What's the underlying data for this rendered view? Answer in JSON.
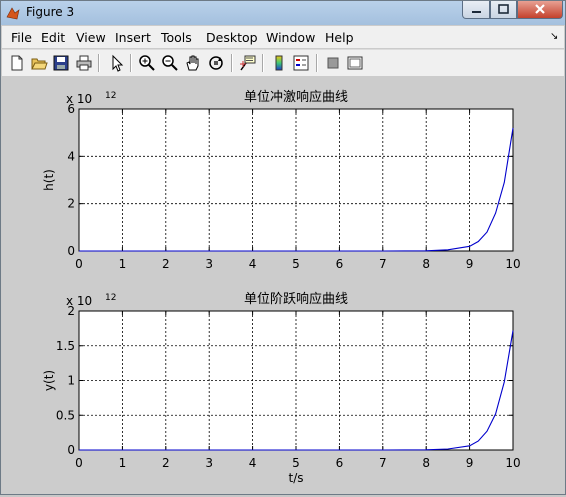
{
  "window": {
    "title": "Figure 3"
  },
  "menu": [
    "File",
    "Edit",
    "View",
    "Insert",
    "Tools",
    "Desktop",
    "Window",
    "Help"
  ],
  "toolbar": {
    "icons": [
      "new-figure-icon",
      "open-file-icon",
      "save-icon",
      "print-icon",
      "edit-plot-arrow-icon",
      "zoom-in-icon",
      "zoom-out-icon",
      "pan-hand-icon",
      "rotate-3d-icon",
      "data-cursor-icon",
      "colorbar-icon",
      "legend-icon",
      "hide-plot-tools-icon",
      "show-plot-tools-icon"
    ]
  },
  "chart_data": [
    {
      "type": "line",
      "title": "单位冲激响应曲线",
      "xlabel": "",
      "ylabel": "h(t)",
      "exponent_label": "x 10",
      "exponent": "12",
      "xlim": [
        0,
        10
      ],
      "ylim": [
        0,
        6
      ],
      "xticks": [
        0,
        1,
        2,
        3,
        4,
        5,
        6,
        7,
        8,
        9,
        10
      ],
      "yticks": [
        0,
        2,
        4,
        6
      ],
      "grid": true,
      "line_color": "#0000cc",
      "x": [
        0,
        1,
        2,
        3,
        4,
        5,
        6,
        7,
        8,
        8.5,
        9,
        9.2,
        9.4,
        9.6,
        9.8,
        10
      ],
      "y": [
        0,
        0,
        0,
        0,
        0,
        0,
        0,
        0,
        0.01,
        0.05,
        0.2,
        0.4,
        0.8,
        1.6,
        2.9,
        5.2
      ]
    },
    {
      "type": "line",
      "title": "单位阶跃响应曲线",
      "xlabel": "t/s",
      "ylabel": "y(t)",
      "exponent_label": "x 10",
      "exponent": "12",
      "xlim": [
        0,
        10
      ],
      "ylim": [
        0,
        2
      ],
      "xticks": [
        0,
        1,
        2,
        3,
        4,
        5,
        6,
        7,
        8,
        9,
        10
      ],
      "yticks": [
        0,
        0.5,
        1,
        1.5,
        2
      ],
      "grid": true,
      "line_color": "#0000cc",
      "x": [
        0,
        1,
        2,
        3,
        4,
        5,
        6,
        7,
        8,
        8.5,
        9,
        9.2,
        9.4,
        9.6,
        9.8,
        10
      ],
      "y": [
        0,
        0,
        0,
        0,
        0,
        0,
        0,
        0,
        0.003,
        0.015,
        0.06,
        0.13,
        0.27,
        0.52,
        0.98,
        1.72
      ]
    }
  ]
}
